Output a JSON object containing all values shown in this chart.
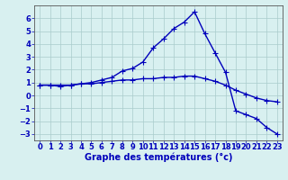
{
  "hours": [
    0,
    1,
    2,
    3,
    4,
    5,
    6,
    7,
    8,
    9,
    10,
    11,
    12,
    13,
    14,
    15,
    16,
    17,
    18,
    19,
    20,
    21,
    22,
    23
  ],
  "line1": [
    0.8,
    0.8,
    0.8,
    0.8,
    0.9,
    0.9,
    1.0,
    1.1,
    1.2,
    1.2,
    1.3,
    1.3,
    1.4,
    1.4,
    1.5,
    1.5,
    1.3,
    1.1,
    0.8,
    0.4,
    0.1,
    -0.2,
    -0.4,
    -0.5
  ],
  "line2": [
    0.8,
    0.8,
    0.7,
    0.8,
    0.9,
    1.0,
    1.2,
    1.4,
    1.9,
    2.1,
    2.6,
    3.7,
    4.4,
    5.2,
    5.7,
    6.5,
    4.8,
    3.3,
    1.8,
    -1.2,
    -1.5,
    -1.8,
    -2.5,
    -3.0
  ],
  "xlabel": "Graphe des températures (°c)",
  "ylim": [
    -3.5,
    7.0
  ],
  "xlim": [
    -0.5,
    23.5
  ],
  "yticks": [
    -3,
    -2,
    -1,
    0,
    1,
    2,
    3,
    4,
    5,
    6
  ],
  "xtick_labels": [
    "0",
    "1",
    "2",
    "3",
    "4",
    "5",
    "6",
    "7",
    "8",
    "9",
    "10",
    "11",
    "12",
    "13",
    "14",
    "15",
    "16",
    "17",
    "18",
    "19",
    "20",
    "21",
    "22",
    "23"
  ],
  "line_color": "#0000bb",
  "bg_color": "#d8f0f0",
  "grid_color": "#aacccc",
  "marker": "+",
  "markersize": 4,
  "linewidth": 1.0,
  "tick_fontsize": 6.0,
  "xlabel_fontsize": 7.0
}
